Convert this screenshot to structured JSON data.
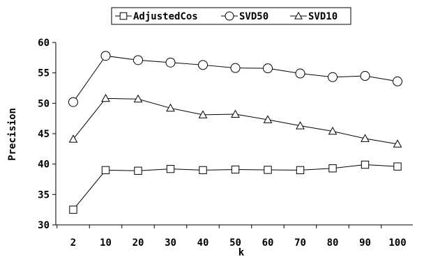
{
  "chart_data": {
    "type": "line",
    "title": "",
    "xlabel": "k",
    "ylabel": "Precision",
    "categories": [
      "2",
      "10",
      "20",
      "30",
      "40",
      "50",
      "60",
      "70",
      "80",
      "90",
      "100"
    ],
    "ylim": [
      30,
      60
    ],
    "yticks": [
      30,
      35,
      40,
      45,
      50,
      55,
      60
    ],
    "grid": false,
    "legend_position": "top-center",
    "series": [
      {
        "name": "AdjustedCos",
        "marker": "square",
        "values": [
          32.5,
          39.0,
          38.9,
          39.2,
          39.0,
          39.1,
          39.05,
          39.0,
          39.3,
          39.9,
          39.6
        ]
      },
      {
        "name": "SVD50",
        "marker": "circle",
        "values": [
          50.2,
          57.8,
          57.1,
          56.7,
          56.3,
          55.8,
          55.75,
          54.9,
          54.3,
          54.5,
          53.6
        ]
      },
      {
        "name": "SVD10",
        "marker": "triangle",
        "values": [
          44.1,
          50.8,
          50.7,
          49.2,
          48.1,
          48.2,
          47.3,
          46.3,
          45.4,
          44.2,
          43.3
        ]
      }
    ]
  }
}
